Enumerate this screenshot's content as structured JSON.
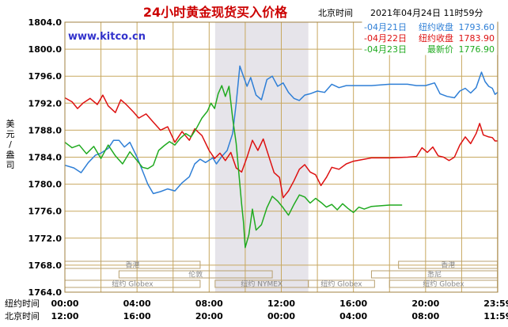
{
  "header": {
    "title": "24小时黄金现货买入价格",
    "timezone_label": "北京时间",
    "timestamp": "2021年04月24日 11时59分",
    "watermark": "www.kitco.cn"
  },
  "colors": {
    "background": "#ffffff",
    "plot_background": "#ffffff",
    "grid": "#c8a860",
    "frame": "#a08040",
    "title": "#cc0000",
    "watermark": "#3333cc",
    "session_shade": "#e6e4ea",
    "series_0421": "#2f7fd6",
    "series_0422": "#dd1111",
    "series_0423": "#20aa20",
    "market_box": "#b8a070",
    "market_text": "#888888"
  },
  "y_axis_label": [
    "美",
    "元",
    "/",
    "盎",
    "司"
  ],
  "row_labels": {
    "ny": "纽约时间",
    "bj": "北京时间"
  },
  "ny_ticks": [
    "00:00",
    "04:00",
    "08:00",
    "12:00",
    "16:00",
    "20:00",
    "23:59"
  ],
  "bj_ticks": [
    "12:00",
    "16:00",
    "20:00",
    "00:00",
    "04:00",
    "08:00",
    "11:59"
  ],
  "markets": [
    {
      "name": "香港",
      "start": 0,
      "end": 7.5,
      "row": 0
    },
    {
      "name": "纽约 Globex",
      "start": 0,
      "end": 7.5,
      "row": 2
    },
    {
      "name": "伦敦",
      "start": 3,
      "end": 11.5,
      "row": 1
    },
    {
      "name": "纽约 NYMEX",
      "start": 8.33,
      "end": 13.5,
      "row": 2
    },
    {
      "name": "纽约 Globex",
      "start": 13.5,
      "end": 17.17,
      "row": 2
    },
    {
      "name": "香港",
      "start": 18.5,
      "end": 23.99,
      "row": 0
    },
    {
      "name": "悉尼",
      "start": 17,
      "end": 23.99,
      "row": 1
    },
    {
      "name": "纽约 Globex",
      "start": 18,
      "end": 23.99,
      "row": 2
    }
  ],
  "chart_data": {
    "type": "line",
    "title": "24小时黄金现货买入价格",
    "ylabel": "美元/盎司",
    "xlabel": "",
    "x_unit": "纽约时间",
    "xlim": [
      0,
      24
    ],
    "ylim": [
      1764,
      1804
    ],
    "y_ticks": [
      "1764.0",
      "1768.0",
      "1772.0",
      "1776.0",
      "1780.0",
      "1784.0",
      "1788.0",
      "1792.0",
      "1796.0",
      "1800.0",
      "1804.0"
    ],
    "grid": true,
    "legend_position": "top-right",
    "shaded_session": [
      8.33,
      13.5
    ],
    "series": [
      {
        "name": "04月21日",
        "legend_left": "-04月21日",
        "legend_mid": "纽约收盘",
        "legend_value": "1793.60",
        "color": "#2f7fd6",
        "points": [
          [
            0,
            1782.8
          ],
          [
            0.5,
            1782.4
          ],
          [
            0.9,
            1781.7
          ],
          [
            1.3,
            1783.2
          ],
          [
            1.7,
            1784.3
          ],
          [
            2,
            1784.6
          ],
          [
            2.4,
            1785.3
          ],
          [
            2.7,
            1786.5
          ],
          [
            3,
            1786.5
          ],
          [
            3.3,
            1785.5
          ],
          [
            3.6,
            1786.2
          ],
          [
            4,
            1784.0
          ],
          [
            4.3,
            1782.0
          ],
          [
            4.6,
            1780.0
          ],
          [
            4.9,
            1778.6
          ],
          [
            5.3,
            1778.9
          ],
          [
            5.7,
            1779.3
          ],
          [
            6.1,
            1779.0
          ],
          [
            6.5,
            1780.2
          ],
          [
            6.9,
            1781.1
          ],
          [
            7.2,
            1783.0
          ],
          [
            7.5,
            1783.7
          ],
          [
            7.8,
            1783.2
          ],
          [
            8.2,
            1783.9
          ],
          [
            8.4,
            1783.0
          ],
          [
            8.7,
            1784.1
          ],
          [
            9.0,
            1785.0
          ],
          [
            9.3,
            1787.5
          ],
          [
            9.5,
            1792.0
          ],
          [
            9.7,
            1797.5
          ],
          [
            9.9,
            1796.0
          ],
          [
            10.1,
            1794.5
          ],
          [
            10.3,
            1795.8
          ],
          [
            10.6,
            1793.2
          ],
          [
            10.9,
            1792.5
          ],
          [
            11.2,
            1795.5
          ],
          [
            11.5,
            1796.0
          ],
          [
            11.8,
            1794.5
          ],
          [
            12.1,
            1795.0
          ],
          [
            12.4,
            1793.6
          ],
          [
            12.7,
            1792.7
          ],
          [
            13.0,
            1792.4
          ],
          [
            13.3,
            1793.2
          ],
          [
            13.6,
            1793.4
          ],
          [
            14.0,
            1793.8
          ],
          [
            14.4,
            1793.6
          ],
          [
            14.8,
            1794.8
          ],
          [
            15.2,
            1794.3
          ],
          [
            15.6,
            1794.6
          ],
          [
            16.0,
            1794.6
          ],
          [
            17.0,
            1794.6
          ],
          [
            18.0,
            1794.8
          ],
          [
            19.0,
            1794.8
          ],
          [
            19.5,
            1794.6
          ],
          [
            20.0,
            1794.6
          ],
          [
            20.5,
            1795.0
          ],
          [
            20.8,
            1793.4
          ],
          [
            21.2,
            1793.0
          ],
          [
            21.6,
            1792.8
          ],
          [
            21.9,
            1793.8
          ],
          [
            22.2,
            1794.2
          ],
          [
            22.5,
            1793.5
          ],
          [
            22.8,
            1794.3
          ],
          [
            23.1,
            1796.6
          ],
          [
            23.3,
            1795.2
          ],
          [
            23.5,
            1794.5
          ],
          [
            23.7,
            1794.2
          ],
          [
            23.85,
            1793.3
          ],
          [
            23.99,
            1793.6
          ]
        ]
      },
      {
        "name": "04月22日",
        "legend_left": "-04月22日",
        "legend_mid": "纽约收盘",
        "legend_value": "1783.90",
        "color": "#dd1111",
        "points": [
          [
            0,
            1792.8
          ],
          [
            0.4,
            1792.2
          ],
          [
            0.7,
            1791.2
          ],
          [
            1.0,
            1792.0
          ],
          [
            1.4,
            1792.7
          ],
          [
            1.8,
            1791.8
          ],
          [
            2.1,
            1793.2
          ],
          [
            2.4,
            1791.6
          ],
          [
            2.8,
            1790.6
          ],
          [
            3.1,
            1792.5
          ],
          [
            3.4,
            1791.8
          ],
          [
            3.8,
            1790.7
          ],
          [
            4.1,
            1789.8
          ],
          [
            4.5,
            1790.4
          ],
          [
            4.9,
            1789.2
          ],
          [
            5.3,
            1788.0
          ],
          [
            5.7,
            1788.5
          ],
          [
            6.1,
            1786.2
          ],
          [
            6.5,
            1787.8
          ],
          [
            6.9,
            1786.5
          ],
          [
            7.2,
            1788.2
          ],
          [
            7.6,
            1787.2
          ],
          [
            8.0,
            1785.0
          ],
          [
            8.3,
            1783.8
          ],
          [
            8.6,
            1784.6
          ],
          [
            8.9,
            1783.5
          ],
          [
            9.2,
            1784.7
          ],
          [
            9.5,
            1782.4
          ],
          [
            9.8,
            1781.8
          ],
          [
            10.1,
            1784.0
          ],
          [
            10.4,
            1786.5
          ],
          [
            10.7,
            1785.0
          ],
          [
            11.0,
            1786.7
          ],
          [
            11.3,
            1784.2
          ],
          [
            11.6,
            1781.7
          ],
          [
            11.9,
            1781.0
          ],
          [
            12.1,
            1778.0
          ],
          [
            12.4,
            1779.0
          ],
          [
            12.7,
            1780.5
          ],
          [
            13.0,
            1782.2
          ],
          [
            13.3,
            1782.9
          ],
          [
            13.6,
            1781.8
          ],
          [
            13.9,
            1781.4
          ],
          [
            14.2,
            1779.8
          ],
          [
            14.5,
            1781.0
          ],
          [
            14.8,
            1782.5
          ],
          [
            15.2,
            1782.2
          ],
          [
            15.6,
            1783.0
          ],
          [
            16.0,
            1783.4
          ],
          [
            17.0,
            1783.9
          ],
          [
            18.0,
            1783.9
          ],
          [
            19.0,
            1784.0
          ],
          [
            19.5,
            1784.1
          ],
          [
            19.8,
            1785.4
          ],
          [
            20.1,
            1784.7
          ],
          [
            20.4,
            1785.5
          ],
          [
            20.7,
            1784.2
          ],
          [
            21.0,
            1784.0
          ],
          [
            21.3,
            1783.5
          ],
          [
            21.6,
            1784.0
          ],
          [
            21.9,
            1785.8
          ],
          [
            22.2,
            1787.0
          ],
          [
            22.5,
            1786.0
          ],
          [
            22.8,
            1787.5
          ],
          [
            23.0,
            1789.0
          ],
          [
            23.2,
            1787.3
          ],
          [
            23.5,
            1787.0
          ],
          [
            23.7,
            1786.9
          ],
          [
            23.85,
            1786.4
          ],
          [
            23.99,
            1786.4
          ]
        ]
      },
      {
        "name": "04月23日",
        "legend_left": "-04月23日",
        "legend_mid": "最新价",
        "legend_value": "1776.90",
        "color": "#20aa20",
        "points": [
          [
            0,
            1786.2
          ],
          [
            0.4,
            1785.4
          ],
          [
            0.8,
            1785.8
          ],
          [
            1.2,
            1784.5
          ],
          [
            1.6,
            1785.6
          ],
          [
            2.0,
            1783.8
          ],
          [
            2.4,
            1785.8
          ],
          [
            2.8,
            1784.2
          ],
          [
            3.2,
            1783.0
          ],
          [
            3.6,
            1784.8
          ],
          [
            4.0,
            1783.5
          ],
          [
            4.3,
            1782.5
          ],
          [
            4.6,
            1782.3
          ],
          [
            4.9,
            1782.8
          ],
          [
            5.2,
            1785.0
          ],
          [
            5.5,
            1785.7
          ],
          [
            5.8,
            1786.3
          ],
          [
            6.1,
            1785.8
          ],
          [
            6.4,
            1786.8
          ],
          [
            6.7,
            1787.5
          ],
          [
            7.0,
            1787.0
          ],
          [
            7.3,
            1788.3
          ],
          [
            7.6,
            1789.8
          ],
          [
            7.9,
            1790.8
          ],
          [
            8.1,
            1792.0
          ],
          [
            8.3,
            1791.2
          ],
          [
            8.5,
            1793.4
          ],
          [
            8.7,
            1794.6
          ],
          [
            8.9,
            1793.0
          ],
          [
            9.1,
            1794.5
          ],
          [
            9.3,
            1789.8
          ],
          [
            9.5,
            1786.0
          ],
          [
            9.7,
            1780.0
          ],
          [
            9.8,
            1777.0
          ],
          [
            9.9,
            1774.5
          ],
          [
            10.0,
            1770.6
          ],
          [
            10.2,
            1772.5
          ],
          [
            10.4,
            1776.3
          ],
          [
            10.6,
            1773.2
          ],
          [
            10.9,
            1774.0
          ],
          [
            11.2,
            1776.5
          ],
          [
            11.5,
            1778.2
          ],
          [
            11.8,
            1777.5
          ],
          [
            12.1,
            1776.5
          ],
          [
            12.4,
            1775.4
          ],
          [
            12.7,
            1777.0
          ],
          [
            13.0,
            1778.4
          ],
          [
            13.3,
            1778.1
          ],
          [
            13.6,
            1777.2
          ],
          [
            13.9,
            1777.9
          ],
          [
            14.2,
            1777.3
          ],
          [
            14.5,
            1776.6
          ],
          [
            14.8,
            1777.0
          ],
          [
            15.1,
            1776.2
          ],
          [
            15.4,
            1777.1
          ],
          [
            15.7,
            1776.4
          ],
          [
            16.0,
            1775.8
          ],
          [
            16.3,
            1776.6
          ],
          [
            16.6,
            1776.3
          ],
          [
            17.0,
            1776.7
          ],
          [
            17.5,
            1776.8
          ],
          [
            18.0,
            1776.9
          ],
          [
            18.7,
            1776.9
          ]
        ]
      }
    ]
  }
}
